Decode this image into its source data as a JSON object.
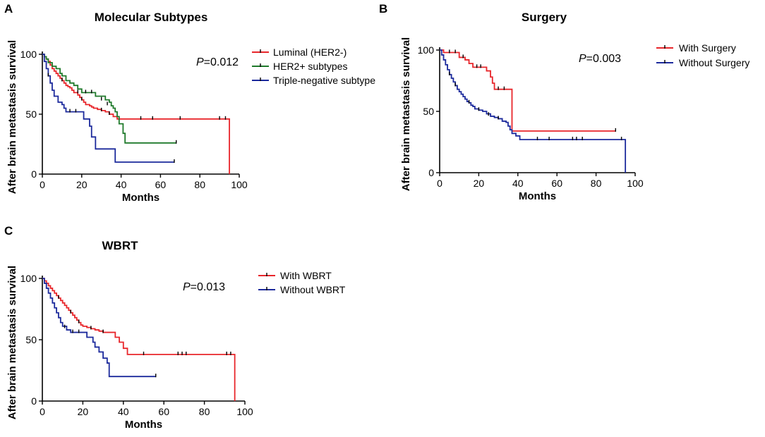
{
  "chart_data": [
    {
      "type": "line",
      "panel": "A",
      "title": "Molecular Subtypes",
      "xlabel": "Months",
      "ylabel": "After brain metastasis survival",
      "xlim": [
        0,
        100
      ],
      "ylim": [
        0,
        100
      ],
      "xticks": [
        "0",
        "20",
        "40",
        "60",
        "80",
        "100"
      ],
      "yticks": [
        "0",
        "50",
        "100"
      ],
      "legend_position": "top-right",
      "p_prefix": "P",
      "p_value": "=0.012",
      "series": [
        {
          "name": "Luminal (HER2-)",
          "color": "#e8262b",
          "steps": [
            [
              0,
              100
            ],
            [
              1,
              98
            ],
            [
              2,
              96
            ],
            [
              3,
              94
            ],
            [
              4,
              91
            ],
            [
              5,
              88
            ],
            [
              6,
              86
            ],
            [
              7,
              84
            ],
            [
              8,
              82
            ],
            [
              9,
              80
            ],
            [
              10,
              78
            ],
            [
              11,
              76
            ],
            [
              12,
              74
            ],
            [
              13,
              73
            ],
            [
              14,
              72
            ],
            [
              15,
              70
            ],
            [
              16,
              68
            ],
            [
              18,
              66
            ],
            [
              19,
              64
            ],
            [
              20,
              62
            ],
            [
              21,
              60
            ],
            [
              22,
              58
            ],
            [
              24,
              57
            ],
            [
              25,
              56
            ],
            [
              26,
              55
            ],
            [
              28,
              54
            ],
            [
              30,
              53
            ],
            [
              32,
              52
            ],
            [
              34,
              50
            ],
            [
              36,
              48
            ],
            [
              38,
              46
            ],
            [
              95,
              46
            ],
            [
              95,
              0
            ]
          ],
          "censors": [
            [
              10,
              78
            ],
            [
              20,
              62
            ],
            [
              30,
              53
            ],
            [
              34,
              50
            ],
            [
              50,
              46
            ],
            [
              56,
              46
            ],
            [
              70,
              46
            ],
            [
              90,
              46
            ],
            [
              93,
              46
            ]
          ]
        },
        {
          "name": "HER2+ subtypes",
          "color": "#1f7a2b",
          "steps": [
            [
              0,
              100
            ],
            [
              1,
              98
            ],
            [
              2,
              96
            ],
            [
              3,
              93
            ],
            [
              5,
              90
            ],
            [
              7,
              88
            ],
            [
              9,
              84
            ],
            [
              10,
              82
            ],
            [
              12,
              78
            ],
            [
              14,
              76
            ],
            [
              16,
              74
            ],
            [
              18,
              71
            ],
            [
              20,
              68
            ],
            [
              26,
              68
            ],
            [
              27,
              65
            ],
            [
              32,
              62
            ],
            [
              34,
              60
            ],
            [
              35,
              57
            ],
            [
              36,
              55
            ],
            [
              37,
              52
            ],
            [
              38,
              48
            ],
            [
              39,
              42
            ],
            [
              41,
              34
            ],
            [
              42,
              26
            ],
            [
              68,
              26
            ]
          ],
          "censors": [
            [
              18,
              68
            ],
            [
              22,
              68
            ],
            [
              25,
              68
            ],
            [
              30,
              62
            ],
            [
              33,
              58
            ],
            [
              68,
              26
            ]
          ]
        },
        {
          "name": "Triple-negative subtype",
          "color": "#1c2a9c",
          "steps": [
            [
              0,
              100
            ],
            [
              1,
              94
            ],
            [
              2,
              88
            ],
            [
              3,
              82
            ],
            [
              4,
              76
            ],
            [
              5,
              70
            ],
            [
              6,
              65
            ],
            [
              8,
              60
            ],
            [
              10,
              58
            ],
            [
              11,
              55
            ],
            [
              12,
              52
            ],
            [
              20,
              52
            ],
            [
              21,
              46
            ],
            [
              24,
              40
            ],
            [
              25,
              31
            ],
            [
              27,
              21
            ],
            [
              36,
              21
            ],
            [
              37,
              10
            ],
            [
              67,
              10
            ]
          ],
          "censors": [
            [
              3,
              82
            ],
            [
              14,
              52
            ],
            [
              17,
              52
            ],
            [
              67,
              10
            ]
          ]
        }
      ]
    },
    {
      "type": "line",
      "panel": "B",
      "title": "Surgery",
      "xlabel": "Months",
      "ylabel": "After brain metastasis survival",
      "xlim": [
        0,
        100
      ],
      "ylim": [
        0,
        100
      ],
      "xticks": [
        "0",
        "20",
        "40",
        "60",
        "80",
        "100"
      ],
      "yticks": [
        "0",
        "50",
        "100"
      ],
      "legend_position": "top-right",
      "p_prefix": "P",
      "p_value": "=0.003",
      "series": [
        {
          "name": "With Surgery",
          "color": "#e8262b",
          "steps": [
            [
              0,
              100
            ],
            [
              2,
              98
            ],
            [
              9,
              98
            ],
            [
              10,
              94
            ],
            [
              13,
              92
            ],
            [
              15,
              89
            ],
            [
              17,
              86
            ],
            [
              23,
              86
            ],
            [
              24,
              83
            ],
            [
              26,
              78
            ],
            [
              27,
              73
            ],
            [
              28,
              68
            ],
            [
              37,
              68
            ],
            [
              37,
              34
            ],
            [
              90,
              34
            ]
          ],
          "censors": [
            [
              5,
              98
            ],
            [
              8,
              98
            ],
            [
              12,
              94
            ],
            [
              19,
              86
            ],
            [
              21,
              86
            ],
            [
              30,
              68
            ],
            [
              33,
              68
            ],
            [
              90,
              34
            ]
          ]
        },
        {
          "name": "Without Surgery",
          "color": "#1c2a9c",
          "steps": [
            [
              0,
              100
            ],
            [
              1,
              96
            ],
            [
              2,
              92
            ],
            [
              3,
              88
            ],
            [
              4,
              84
            ],
            [
              5,
              80
            ],
            [
              6,
              77
            ],
            [
              7,
              74
            ],
            [
              8,
              71
            ],
            [
              9,
              68
            ],
            [
              10,
              66
            ],
            [
              11,
              64
            ],
            [
              12,
              62
            ],
            [
              13,
              60
            ],
            [
              14,
              58
            ],
            [
              15,
              57
            ],
            [
              16,
              55
            ],
            [
              17,
              54
            ],
            [
              18,
              52
            ],
            [
              20,
              51
            ],
            [
              22,
              50
            ],
            [
              24,
              48
            ],
            [
              26,
              46
            ],
            [
              28,
              45
            ],
            [
              30,
              44
            ],
            [
              32,
              42
            ],
            [
              34,
              41
            ],
            [
              35,
              38
            ],
            [
              36,
              35
            ],
            [
              37,
              32
            ],
            [
              39,
              30
            ],
            [
              41,
              27
            ],
            [
              95,
              27
            ],
            [
              95,
              0
            ]
          ],
          "censors": [
            [
              5,
              80
            ],
            [
              8,
              71
            ],
            [
              15,
              57
            ],
            [
              20,
              51
            ],
            [
              25,
              47
            ],
            [
              30,
              44
            ],
            [
              50,
              27
            ],
            [
              56,
              27
            ],
            [
              68,
              27
            ],
            [
              70,
              27
            ],
            [
              73,
              27
            ],
            [
              93,
              27
            ]
          ]
        }
      ]
    },
    {
      "type": "line",
      "panel": "C",
      "title": "WBRT",
      "xlabel": "Months",
      "ylabel": "After brain metastasis survival",
      "xlim": [
        0,
        100
      ],
      "ylim": [
        0,
        100
      ],
      "xticks": [
        "0",
        "20",
        "40",
        "60",
        "80",
        "100"
      ],
      "yticks": [
        "0",
        "50",
        "100"
      ],
      "legend_position": "top-right",
      "p_prefix": "P",
      "p_value": "=0.013",
      "series": [
        {
          "name": "With WBRT",
          "color": "#e8262b",
          "steps": [
            [
              0,
              100
            ],
            [
              1,
              98
            ],
            [
              2,
              96
            ],
            [
              3,
              94
            ],
            [
              4,
              92
            ],
            [
              5,
              90
            ],
            [
              6,
              88
            ],
            [
              7,
              86
            ],
            [
              8,
              84
            ],
            [
              9,
              82
            ],
            [
              10,
              80
            ],
            [
              11,
              78
            ],
            [
              12,
              76
            ],
            [
              13,
              74
            ],
            [
              14,
              72
            ],
            [
              15,
              70
            ],
            [
              16,
              68
            ],
            [
              17,
              66
            ],
            [
              18,
              64
            ],
            [
              19,
              62
            ],
            [
              20,
              61
            ],
            [
              22,
              60
            ],
            [
              24,
              59
            ],
            [
              26,
              58
            ],
            [
              28,
              57
            ],
            [
              30,
              56
            ],
            [
              35,
              56
            ],
            [
              36,
              52
            ],
            [
              38,
              48
            ],
            [
              40,
              43
            ],
            [
              42,
              38
            ],
            [
              95,
              38
            ],
            [
              95,
              0
            ]
          ],
          "censors": [
            [
              8,
              84
            ],
            [
              14,
              72
            ],
            [
              18,
              64
            ],
            [
              24,
              59
            ],
            [
              30,
              56
            ],
            [
              50,
              38
            ],
            [
              67,
              38
            ],
            [
              69,
              38
            ],
            [
              71,
              38
            ],
            [
              91,
              38
            ],
            [
              93,
              38
            ]
          ]
        },
        {
          "name": "Without WBRT",
          "color": "#1c2a9c",
          "steps": [
            [
              0,
              100
            ],
            [
              1,
              96
            ],
            [
              2,
              92
            ],
            [
              3,
              88
            ],
            [
              4,
              84
            ],
            [
              5,
              80
            ],
            [
              6,
              76
            ],
            [
              7,
              72
            ],
            [
              8,
              68
            ],
            [
              9,
              64
            ],
            [
              10,
              61
            ],
            [
              12,
              58
            ],
            [
              14,
              56
            ],
            [
              20,
              56
            ],
            [
              22,
              52
            ],
            [
              25,
              48
            ],
            [
              26,
              44
            ],
            [
              28,
              40
            ],
            [
              30,
              35
            ],
            [
              32,
              31
            ],
            [
              33,
              20
            ],
            [
              56,
              20
            ]
          ],
          "censors": [
            [
              11,
              60
            ],
            [
              15,
              56
            ],
            [
              18,
              56
            ],
            [
              56,
              20
            ]
          ]
        }
      ]
    }
  ]
}
